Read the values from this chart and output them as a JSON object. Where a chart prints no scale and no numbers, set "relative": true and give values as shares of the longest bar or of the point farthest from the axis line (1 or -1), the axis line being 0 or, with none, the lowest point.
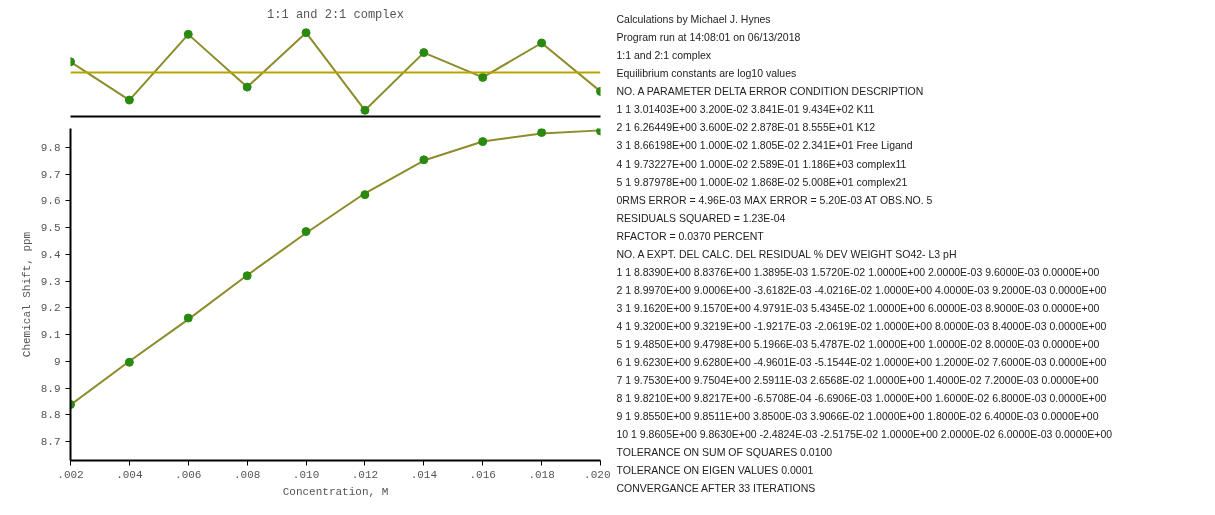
{
  "chart_data": [
    {
      "type": "line",
      "title": "1:1 and 2:1 complex",
      "relative": true,
      "x": [
        0.002,
        0.004,
        0.006,
        0.008,
        0.01,
        0.012,
        0.014,
        0.016,
        0.018,
        0.02
      ],
      "xlim": [
        0.002,
        0.02
      ],
      "series": [
        {
          "type": "line",
          "color": "#8c8c2a",
          "values": [
            0.267,
            -0.696,
            0.958,
            -0.37,
            1,
            -0.954,
            0.499,
            -0.126,
            0.741,
            -0.478
          ]
        },
        {
          "type": "scatter",
          "marker": "circle",
          "color": "#2a8a10",
          "values": [
            0.267,
            -0.696,
            0.958,
            -0.37,
            1,
            -0.954,
            0.499,
            -0.126,
            0.741,
            -0.478
          ]
        }
      ],
      "ref_lines": [
        {
          "axis": "y",
          "value": 0,
          "color": "#b8a400"
        }
      ]
    },
    {
      "type": "line",
      "xlabel": "Concentration, M",
      "ylabel": "Chemical Shift, ppm",
      "x": [
        0.002,
        0.004,
        0.006,
        0.008,
        0.01,
        0.012,
        0.014,
        0.016,
        0.018,
        0.02
      ],
      "xlim": [
        0.002,
        0.02
      ],
      "xticks": [
        {
          "value": 0.002,
          "label": ".002"
        },
        {
          "value": 0.004,
          "label": ".004"
        },
        {
          "value": 0.006,
          "label": ".006"
        },
        {
          "value": 0.008,
          "label": ".008"
        },
        {
          "value": 0.01,
          "label": ".010"
        },
        {
          "value": 0.012,
          "label": ".012"
        },
        {
          "value": 0.014,
          "label": ".014"
        },
        {
          "value": 0.016,
          "label": ".016"
        },
        {
          "value": 0.018,
          "label": ".018"
        },
        {
          "value": 0.02,
          "label": ".020"
        }
      ],
      "ylim": [
        8.63,
        9.87
      ],
      "yticks": [
        8.7,
        8.8,
        8.9,
        9,
        9.1,
        9.2,
        9.3,
        9.4,
        9.5,
        9.6,
        9.7,
        9.8
      ],
      "series": [
        {
          "type": "line",
          "color": "#8c8c2a",
          "values": [
            8.8376,
            9.0006,
            9.157,
            9.3219,
            9.4798,
            9.628,
            9.7504,
            9.8217,
            9.8511,
            9.863
          ]
        },
        {
          "type": "scatter",
          "marker": "circle",
          "color": "#2a8a10",
          "values": [
            8.839,
            8.997,
            9.162,
            9.32,
            9.485,
            9.623,
            9.753,
            9.821,
            9.855,
            9.8605
          ]
        }
      ]
    },
    {
      "type": "other",
      "annotations": [
        "Calculations by Michael J. Hynes",
        "Program run at 14:08:01   on 06/13/2018",
        "1:1 and 2:1 complex",
        "Equilibrium constants are log10 values",
        "NO. A  PARAMETER   DELTA    ERROR   CONDITION  DESCRIPTION",
        "1  1  3.01403E+00 3.200E-02 3.841E-01 9.434E+02 K11",
        "2  1  6.26449E+00 3.600E-02 2.878E-01 8.555E+01 K12",
        "3  1  8.66198E+00 1.000E-02 1.805E-02 2.341E+01 Free Ligand",
        "4  1  9.73227E+00 1.000E-02 2.589E-01 1.186E+03 complex11",
        "5  1  9.87978E+00 1.000E-02 1.868E-02 5.008E+01 complex21",
        "0RMS ERROR = 4.96E-03  MAX ERROR = 5.20E-03 AT OBS.NO.  5",
        "RESIDUALS SQUARED = 1.23E-04",
        "RFACTOR =     0.0370 PERCENT",
        "NO. A   EXPT. DEL  CALC. DEL    RESIDUAL    % DEV   WEIGHT    SO42-    L3      pH",
        "1 1  8.8390E+00 8.8376E+00 1.3895E-03 1.5720E-02 1.0000E+00 2.0000E-03 9.6000E-03 0.0000E+00",
        "2 1  8.9970E+00 9.0006E+00 -3.6182E-03 -4.0216E-02 1.0000E+00 4.0000E-03 9.2000E-03 0.0000E+00",
        "3 1  9.1620E+00 9.1570E+00 4.9791E-03 5.4345E-02 1.0000E+00 6.0000E-03 8.9000E-03 0.0000E+00",
        "4 1  9.3200E+00 9.3219E+00 -1.9217E-03 -2.0619E-02 1.0000E+00 8.0000E-03 8.4000E-03 0.0000E+00",
        "5 1  9.4850E+00 9.4798E+00 5.1966E-03 5.4787E-02 1.0000E+00 1.0000E-02 8.0000E-03 0.0000E+00",
        "6 1  9.6230E+00 9.6280E+00 -4.9601E-03 -5.1544E-02 1.0000E+00 1.2000E-02 7.6000E-03 0.0000E+00",
        "7 1  9.7530E+00 9.7504E+00 2.5911E-03 2.6568E-02 1.0000E+00 1.4000E-02 7.2000E-03 0.0000E+00",
        "8 1  9.8210E+00 9.8217E+00 -6.5708E-04 -6.6906E-03 1.0000E+00 1.6000E-02 6.8000E-03 0.0000E+00",
        "9 1  9.8550E+00 9.8511E+00 3.8500E-03 3.9066E-02 1.0000E+00 1.8000E-02 6.4000E-03 0.0000E+00",
        "10 1  9.8605E+00 9.8630E+00 -2.4824E-03 -2.5175E-02 1.0000E+00 2.0000E-02 6.0000E-03 0.0000E+00",
        "TOLERANCE ON SUM OF SQUARES    0.0100",
        "TOLERANCE ON EIGEN VALUES    0.0001",
        "CONVERGANCE AFTER   33  ITERATIONS"
      ]
    }
  ]
}
